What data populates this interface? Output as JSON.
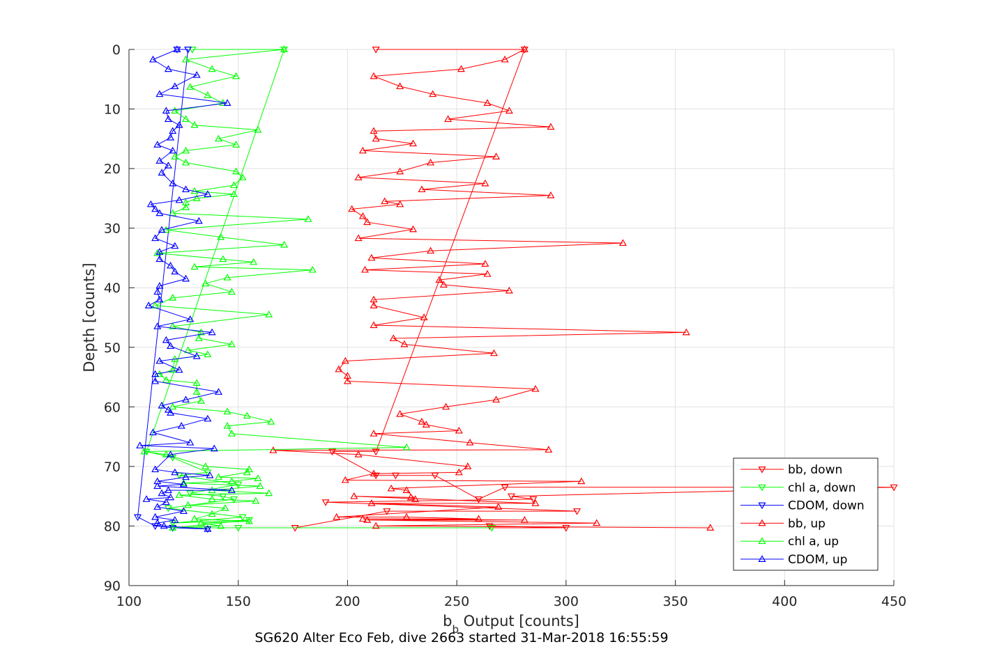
{
  "chart_data": {
    "type": "line",
    "xlabel_main": "b",
    "xlabel_sub": "b",
    "xlabel_rest": " Output [counts]",
    "ylabel": "Depth [counts]",
    "caption": "SG620 Alter Eco Feb, dive 2663 started 31-Mar-2018 16:55:59",
    "xlim": [
      100,
      450
    ],
    "ylim": [
      0,
      90
    ],
    "y_reversed": true,
    "grid": true,
    "legend_position": "bottom-right",
    "x_ticks": [
      "100",
      "150",
      "200",
      "250",
      "300",
      "350",
      "400",
      "450"
    ],
    "y_ticks": [
      "0",
      "10",
      "20",
      "30",
      "40",
      "50",
      "60",
      "70",
      "80",
      "90"
    ],
    "series": [
      {
        "name": "bb, down",
        "color": "#ff0000",
        "marker": "triangle-down",
        "points": [
          [
            213,
            0
          ],
          [
            281,
            0
          ],
          [
            213,
            67.5
          ],
          [
            193,
            67.5
          ],
          [
            213,
            71.5
          ],
          [
            222,
            71.5
          ],
          [
            240,
            71.5
          ],
          [
            260,
            75.5
          ],
          [
            272,
            73.5
          ],
          [
            450,
            73.5
          ],
          [
            275,
            75
          ],
          [
            285,
            75.5
          ],
          [
            190,
            76
          ],
          [
            305,
            77.5
          ],
          [
            218,
            77.5
          ],
          [
            176,
            80.3
          ],
          [
            300,
            80.3
          ],
          [
            265,
            80
          ]
        ]
      },
      {
        "name": "chl a, down",
        "color": "#00ff00",
        "marker": "triangle-down",
        "points": [
          [
            129,
            0
          ],
          [
            171,
            0
          ],
          [
            108,
            67.5
          ],
          [
            120,
            68.5
          ],
          [
            136,
            71
          ],
          [
            123,
            71.5
          ],
          [
            150,
            73
          ],
          [
            128,
            74.5
          ],
          [
            143,
            75
          ],
          [
            148,
            75.5
          ],
          [
            118,
            77
          ],
          [
            152,
            78.5
          ],
          [
            120,
            79.5
          ],
          [
            155,
            79
          ],
          [
            120,
            80.3
          ],
          [
            150,
            80.3
          ],
          [
            266,
            80.3
          ]
        ]
      },
      {
        "name": "CDOM, down",
        "color": "#0000ff",
        "marker": "triangle-down",
        "points": [
          [
            122,
            0
          ],
          [
            127,
            0
          ],
          [
            104,
            78.5
          ],
          [
            112,
            80
          ],
          [
            120,
            80.3
          ],
          [
            136,
            80.5
          ]
        ]
      },
      {
        "name": "bb, up",
        "color": "#ff0000",
        "marker": "triangle-up",
        "points": [
          [
            366,
            80.3
          ],
          [
            213,
            80
          ],
          [
            314,
            79.5
          ],
          [
            209,
            79
          ],
          [
            281,
            79
          ],
          [
            207,
            78.8
          ],
          [
            260,
            78.8
          ],
          [
            227,
            78.5
          ],
          [
            195,
            78.5
          ],
          [
            269,
            76.8
          ],
          [
            211,
            76.2
          ],
          [
            286,
            76.2
          ],
          [
            203,
            75
          ],
          [
            229,
            75.2
          ],
          [
            231,
            75.5
          ],
          [
            227,
            74
          ],
          [
            220,
            73.7
          ],
          [
            307,
            72.5
          ],
          [
            199,
            72.3
          ],
          [
            212,
            71.2
          ],
          [
            251,
            71
          ],
          [
            255,
            70
          ],
          [
            205,
            68
          ],
          [
            166,
            67.3
          ],
          [
            292,
            67.2
          ],
          [
            256,
            66
          ],
          [
            212,
            64.5
          ],
          [
            251,
            64
          ],
          [
            236,
            63
          ],
          [
            234,
            62.5
          ],
          [
            224,
            61.2
          ],
          [
            245,
            60
          ],
          [
            268,
            58.8
          ],
          [
            286,
            57
          ],
          [
            200,
            55.7
          ],
          [
            200,
            54.8
          ],
          [
            196,
            53.7
          ],
          [
            199,
            52.3
          ],
          [
            267,
            51
          ],
          [
            226,
            49.5
          ],
          [
            221,
            48.5
          ],
          [
            355,
            47.5
          ],
          [
            212,
            46.3
          ],
          [
            235,
            45
          ],
          [
            212,
            43
          ],
          [
            212,
            42
          ],
          [
            274,
            40.5
          ],
          [
            244,
            39.5
          ],
          [
            242,
            38.7
          ],
          [
            264,
            37.7
          ],
          [
            208,
            37
          ],
          [
            263,
            36
          ],
          [
            211,
            35
          ],
          [
            238,
            33.8
          ],
          [
            326,
            32.5
          ],
          [
            205,
            31.7
          ],
          [
            230,
            30.2
          ],
          [
            209,
            29
          ],
          [
            207,
            28
          ],
          [
            202,
            26.8
          ],
          [
            224,
            26
          ],
          [
            217,
            25.5
          ],
          [
            293,
            24.5
          ],
          [
            234,
            23.5
          ],
          [
            263,
            22.5
          ],
          [
            205,
            21.5
          ],
          [
            224,
            20.5
          ],
          [
            238,
            19
          ],
          [
            268,
            18
          ],
          [
            207,
            17
          ],
          [
            230,
            15.8
          ],
          [
            213,
            15
          ],
          [
            212,
            13.7
          ],
          [
            293,
            13
          ],
          [
            246,
            11.7
          ],
          [
            274,
            10.3
          ],
          [
            264,
            9
          ],
          [
            239,
            7.5
          ],
          [
            224,
            6.2
          ],
          [
            212,
            4.5
          ],
          [
            252,
            3.3
          ],
          [
            272,
            1.7
          ],
          [
            281,
            0
          ]
        ]
      },
      {
        "name": "chl a, up",
        "color": "#00ff00",
        "marker": "triangle-up",
        "points": [
          [
            120,
            80.3
          ],
          [
            142,
            80
          ],
          [
            133,
            79.5
          ],
          [
            155,
            79.2
          ],
          [
            130,
            78.8
          ],
          [
            138,
            78
          ],
          [
            144,
            77
          ],
          [
            127,
            76.5
          ],
          [
            158,
            75.8
          ],
          [
            138,
            75.5
          ],
          [
            123,
            74.8
          ],
          [
            164,
            74.5
          ],
          [
            138,
            74
          ],
          [
            160,
            73.3
          ],
          [
            125,
            72.8
          ],
          [
            147,
            72.5
          ],
          [
            159,
            72
          ],
          [
            141,
            71.8
          ],
          [
            154,
            71
          ],
          [
            155,
            70.5
          ],
          [
            135,
            70
          ],
          [
            117,
            68
          ],
          [
            107,
            67.5
          ],
          [
            227,
            66.8
          ],
          [
            147,
            64.5
          ],
          [
            145,
            63.2
          ],
          [
            165,
            62.5
          ],
          [
            154,
            61.5
          ],
          [
            145,
            60.8
          ],
          [
            120,
            60
          ],
          [
            133,
            59
          ],
          [
            131,
            57.5
          ],
          [
            131,
            56
          ],
          [
            117,
            55.5
          ],
          [
            114,
            54.5
          ],
          [
            120,
            53.8
          ],
          [
            121,
            52
          ],
          [
            136,
            51.2
          ],
          [
            127,
            50.5
          ],
          [
            147,
            49.5
          ],
          [
            132,
            48.5
          ],
          [
            133,
            47.5
          ],
          [
            120,
            46.5
          ],
          [
            164,
            44.5
          ],
          [
            112,
            43
          ],
          [
            120,
            41.7
          ],
          [
            147,
            40.7
          ],
          [
            135,
            39.3
          ],
          [
            145,
            38.3
          ],
          [
            184,
            37
          ],
          [
            130,
            36.5
          ],
          [
            157,
            35.7
          ],
          [
            143,
            35.2
          ],
          [
            113,
            34.2
          ],
          [
            171,
            32.8
          ],
          [
            142,
            31.5
          ],
          [
            117,
            30.3
          ],
          [
            182,
            28.5
          ],
          [
            120,
            27.5
          ],
          [
            126,
            26.5
          ],
          [
            126,
            25.7
          ],
          [
            131,
            25
          ],
          [
            148,
            24.3
          ],
          [
            130,
            23.8
          ],
          [
            148,
            22.8
          ],
          [
            152,
            21.5
          ],
          [
            149,
            20.5
          ],
          [
            126,
            19
          ],
          [
            121,
            18
          ],
          [
            126,
            17
          ],
          [
            149,
            16
          ],
          [
            141,
            15
          ],
          [
            159,
            13.5
          ],
          [
            130,
            12.7
          ],
          [
            126,
            11.7
          ],
          [
            121,
            10.3
          ],
          [
            143,
            9
          ],
          [
            136,
            7.7
          ],
          [
            128,
            6.3
          ],
          [
            149,
            4.5
          ],
          [
            138,
            3.3
          ],
          [
            126,
            1.7
          ],
          [
            171,
            0
          ]
        ]
      },
      {
        "name": "CDOM, up",
        "color": "#0000ff",
        "marker": "triangle-up",
        "points": [
          [
            136,
            80.5
          ],
          [
            116,
            80
          ],
          [
            113,
            79.5
          ],
          [
            121,
            79
          ],
          [
            112,
            78.5
          ],
          [
            125,
            77.5
          ],
          [
            113,
            76.8
          ],
          [
            117,
            76
          ],
          [
            108,
            75.5
          ],
          [
            119,
            75.2
          ],
          [
            115,
            74.5
          ],
          [
            118,
            74
          ],
          [
            147,
            74
          ],
          [
            113,
            73.3
          ],
          [
            125,
            73
          ],
          [
            113,
            72.5
          ],
          [
            126,
            71.8
          ],
          [
            137,
            71.5
          ],
          [
            121,
            71
          ],
          [
            112,
            70.5
          ],
          [
            119,
            68
          ],
          [
            139,
            67
          ],
          [
            105,
            66.5
          ],
          [
            128,
            66
          ],
          [
            111,
            64.3
          ],
          [
            124,
            63.2
          ],
          [
            136,
            62
          ],
          [
            119,
            61
          ],
          [
            118,
            60.5
          ],
          [
            115,
            59.8
          ],
          [
            126,
            58.8
          ],
          [
            141,
            57.5
          ],
          [
            112,
            55.7
          ],
          [
            112,
            54.5
          ],
          [
            123,
            53.8
          ],
          [
            114,
            52.3
          ],
          [
            131,
            51.5
          ],
          [
            119,
            49.8
          ],
          [
            117,
            48.8
          ],
          [
            138,
            47.5
          ],
          [
            113,
            46.5
          ],
          [
            128,
            45.3
          ],
          [
            109,
            43
          ],
          [
            114,
            42
          ],
          [
            113,
            40.7
          ],
          [
            114,
            39.7
          ],
          [
            126,
            38.5
          ],
          [
            121,
            37.3
          ],
          [
            119,
            36.3
          ],
          [
            114,
            35.2
          ],
          [
            114,
            34
          ],
          [
            121,
            33
          ],
          [
            112,
            31.7
          ],
          [
            115,
            30.3
          ],
          [
            132,
            28.8
          ],
          [
            114,
            27.5
          ],
          [
            112,
            26.8
          ],
          [
            110,
            26
          ],
          [
            123,
            25.3
          ],
          [
            136,
            24.3
          ],
          [
            126,
            23.5
          ],
          [
            120,
            22.5
          ],
          [
            115,
            20.7
          ],
          [
            118,
            19.5
          ],
          [
            114,
            18.7
          ],
          [
            120,
            17
          ],
          [
            113,
            16
          ],
          [
            119,
            14.8
          ],
          [
            120,
            13.7
          ],
          [
            123,
            12.7
          ],
          [
            118,
            11.7
          ],
          [
            117,
            10.3
          ],
          [
            145,
            9
          ],
          [
            114,
            7.5
          ],
          [
            121,
            6.2
          ],
          [
            131,
            4.3
          ],
          [
            118,
            3.3
          ],
          [
            111,
            1.7
          ],
          [
            122,
            0
          ]
        ]
      }
    ]
  }
}
